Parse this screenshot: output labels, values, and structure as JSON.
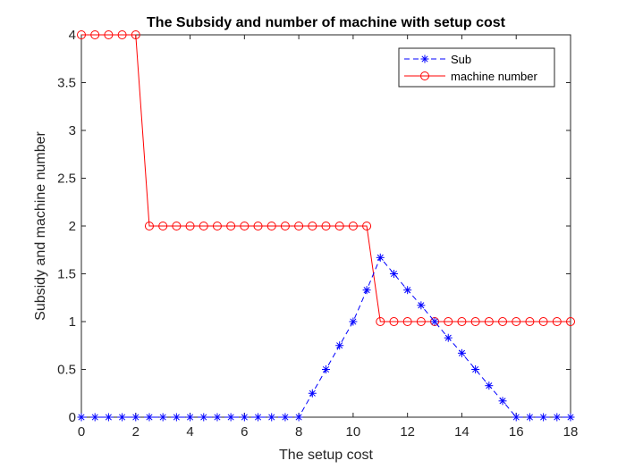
{
  "chart_data": {
    "type": "line",
    "title": "The Subsidy and number of machine with setup cost",
    "xlabel": "The setup cost",
    "ylabel": "Subsidy and machine number",
    "xlim": [
      0,
      18
    ],
    "ylim": [
      0,
      4
    ],
    "xticks": [
      0,
      2,
      4,
      6,
      8,
      10,
      12,
      14,
      16,
      18
    ],
    "yticks": [
      0,
      0.5,
      1,
      1.5,
      2,
      2.5,
      3,
      3.5,
      4
    ],
    "xtick_labels": [
      "0",
      "2",
      "4",
      "6",
      "8",
      "10",
      "12",
      "14",
      "16",
      "18"
    ],
    "ytick_labels": [
      "0",
      "0.5",
      "1",
      "1.5",
      "2",
      "2.5",
      "3",
      "3.5",
      "4"
    ],
    "grid": false,
    "legend_position": "top-right",
    "x": [
      0,
      0.5,
      1,
      1.5,
      2,
      2.5,
      3,
      3.5,
      4,
      4.5,
      5,
      5.5,
      6,
      6.5,
      7,
      7.5,
      8,
      8.5,
      9,
      9.5,
      10,
      10.5,
      11,
      11.5,
      12,
      12.5,
      13,
      13.5,
      14,
      14.5,
      15,
      15.5,
      16,
      16.5,
      17,
      17.5,
      18
    ],
    "series": [
      {
        "name": "Sub",
        "color": "#0000ff",
        "line_style": "dashed",
        "marker": "asterisk",
        "values": [
          0,
          0,
          0,
          0,
          0,
          0,
          0,
          0,
          0,
          0,
          0,
          0,
          0,
          0,
          0,
          0,
          0,
          0.25,
          0.5,
          0.75,
          1.0,
          1.33,
          1.67,
          1.5,
          1.33,
          1.17,
          1.0,
          0.83,
          0.67,
          0.5,
          0.33,
          0.17,
          0,
          0,
          0,
          0,
          0
        ]
      },
      {
        "name": "machine number",
        "color": "#ff0000",
        "line_style": "solid",
        "marker": "circle",
        "values": [
          4,
          4,
          4,
          4,
          4,
          2,
          2,
          2,
          2,
          2,
          2,
          2,
          2,
          2,
          2,
          2,
          2,
          2,
          2,
          2,
          2,
          2,
          1,
          1,
          1,
          1,
          1,
          1,
          1,
          1,
          1,
          1,
          1,
          1,
          1,
          1,
          1
        ]
      }
    ]
  }
}
